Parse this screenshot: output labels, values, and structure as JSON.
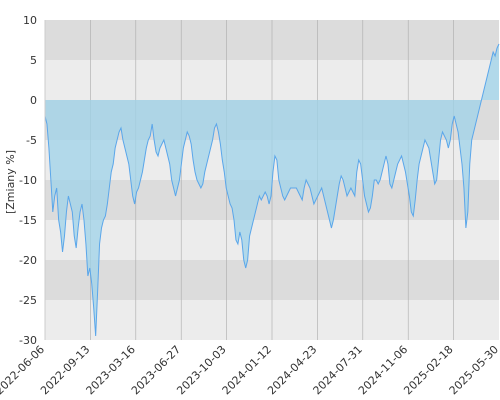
{
  "chart_data": {
    "type": "area",
    "ylabel": "[Zmiany %]",
    "ylim": [
      -30,
      10
    ],
    "y_ticks": [
      10,
      5,
      0,
      -5,
      -10,
      -15,
      -20,
      -25,
      -30
    ],
    "x_tick_labels": [
      "2022-06-06",
      "2022-09-13",
      "2023-03-16",
      "2023-06-27",
      "2023-10-03",
      "2024-01-12",
      "2024-04-23",
      "2024-07-31",
      "2024-11-06",
      "2025-02-18",
      "2025-05-30"
    ],
    "grid": true,
    "colors": {
      "line": "#5aa6ea",
      "fill": "#9fd3ea",
      "band_dark": "#dcdcdc",
      "band_light": "#ececec",
      "gridline": "#aaaaaa"
    },
    "series": [
      {
        "values": [
          -2.0,
          -3.0,
          -6.0,
          -10.0,
          -14.0,
          -12.0,
          -11.0,
          -15.0,
          -16.5,
          -19.0,
          -17.0,
          -14.0,
          -12.0,
          -13.0,
          -14.0,
          -17.0,
          -18.5,
          -16.0,
          -14.0,
          -13.0,
          -15.0,
          -18.0,
          -22.0,
          -21.0,
          -23.0,
          -26.0,
          -29.5,
          -24.0,
          -18.0,
          -16.0,
          -15.0,
          -14.5,
          -13.0,
          -11.0,
          -9.0,
          -8.0,
          -6.0,
          -5.0,
          -4.0,
          -3.5,
          -5.0,
          -6.0,
          -7.0,
          -8.0,
          -10.0,
          -12.0,
          -13.0,
          -11.5,
          -11.0,
          -10.0,
          -9.0,
          -7.5,
          -6.0,
          -5.0,
          -4.5,
          -3.0,
          -5.0,
          -6.5,
          -7.0,
          -6.0,
          -5.5,
          -5.0,
          -6.0,
          -7.0,
          -8.0,
          -10.0,
          -11.0,
          -12.0,
          -11.0,
          -10.0,
          -8.0,
          -6.0,
          -5.0,
          -4.0,
          -4.5,
          -5.5,
          -7.5,
          -9.0,
          -10.0,
          -10.5,
          -11.0,
          -10.5,
          -9.0,
          -8.0,
          -7.0,
          -6.0,
          -5.0,
          -3.5,
          -3.0,
          -4.0,
          -5.5,
          -7.5,
          -9.0,
          -11.0,
          -12.0,
          -13.0,
          -13.5,
          -15.0,
          -17.5,
          -18.0,
          -16.5,
          -17.5,
          -20.0,
          -21.0,
          -20.0,
          -17.0,
          -16.0,
          -15.0,
          -14.0,
          -13.0,
          -12.0,
          -12.5,
          -12.0,
          -11.5,
          -12.0,
          -13.0,
          -12.0,
          -9.0,
          -7.0,
          -7.5,
          -10.0,
          -11.0,
          -12.0,
          -12.5,
          -12.0,
          -11.5,
          -11.0,
          -11.0,
          -11.0,
          -11.0,
          -11.5,
          -12.0,
          -12.5,
          -11.0,
          -10.0,
          -10.5,
          -11.0,
          -12.0,
          -13.0,
          -12.5,
          -12.0,
          -11.5,
          -11.0,
          -12.0,
          -13.0,
          -14.0,
          -15.0,
          -16.0,
          -15.0,
          -13.5,
          -12.0,
          -10.5,
          -9.5,
          -10.0,
          -11.0,
          -12.0,
          -11.5,
          -11.0,
          -11.5,
          -12.0,
          -9.0,
          -7.5,
          -8.0,
          -10.0,
          -12.0,
          -13.0,
          -14.0,
          -13.5,
          -12.0,
          -10.0,
          -10.0,
          -10.5,
          -10.0,
          -9.0,
          -8.0,
          -7.0,
          -8.0,
          -10.5,
          -11.0,
          -10.0,
          -9.0,
          -8.0,
          -7.5,
          -7.0,
          -8.0,
          -9.0,
          -10.5,
          -12.0,
          -14.0,
          -14.5,
          -12.5,
          -10.0,
          -8.0,
          -7.0,
          -6.0,
          -5.0,
          -5.5,
          -6.0,
          -7.5,
          -9.0,
          -10.5,
          -10.0,
          -7.5,
          -5.0,
          -4.0,
          -4.5,
          -5.0,
          -6.0,
          -5.0,
          -3.0,
          -2.0,
          -3.0,
          -4.0,
          -6.0,
          -8.0,
          -11.0,
          -16.0,
          -14.0,
          -8.0,
          -5.0,
          -4.0,
          -3.0,
          -2.0,
          -1.0,
          0.0,
          1.0,
          2.0,
          3.0,
          4.0,
          5.0,
          6.0,
          5.5,
          6.5,
          7.0
        ]
      }
    ]
  }
}
